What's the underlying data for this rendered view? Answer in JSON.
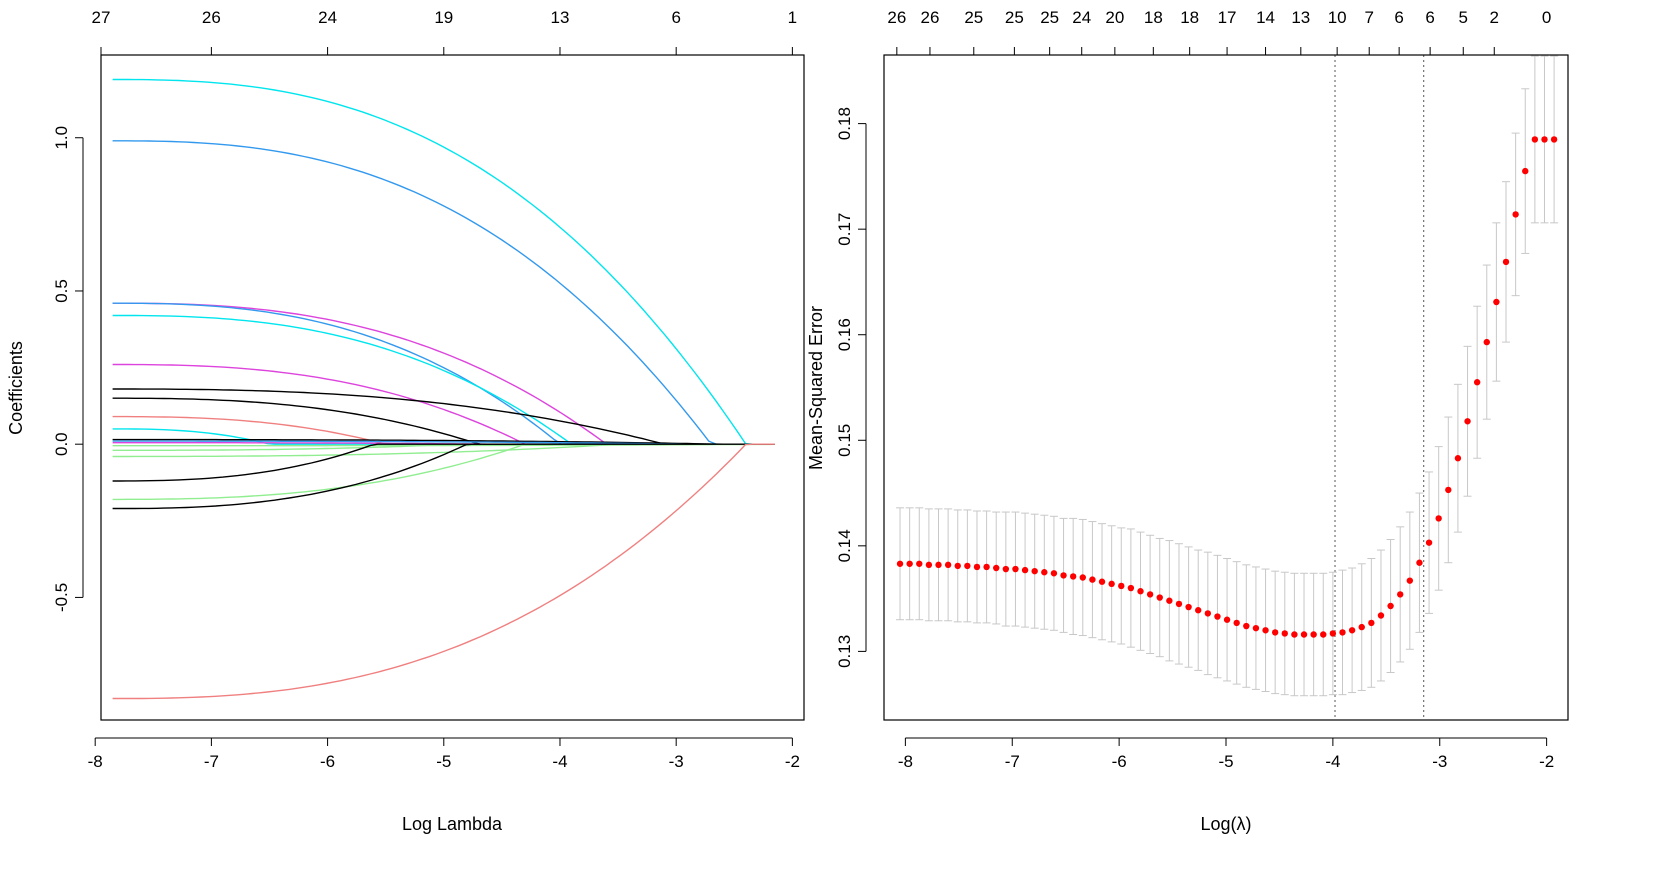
{
  "chart_data": [
    {
      "type": "line",
      "xlabel": "Log Lambda",
      "ylabel": "Coefficients",
      "xlim": [
        -7.95,
        -1.9
      ],
      "ylim": [
        -0.9,
        1.27
      ],
      "xticks": [
        -8,
        -7,
        -6,
        -5,
        -4,
        -3,
        -2
      ],
      "xtick_labels": [
        "-8",
        "-7",
        "-6",
        "-5",
        "-4",
        "-3",
        "-2"
      ],
      "yticks": [
        -0.5,
        0.0,
        0.5,
        1.0
      ],
      "ytick_labels": [
        "-0.5",
        "0.0",
        "0.5",
        "1.0"
      ],
      "top_ticks_x": [
        -7.95,
        -7,
        -6,
        -5,
        -4,
        -3,
        -2
      ],
      "top_ticks_labels": [
        "27",
        "26",
        "24",
        "19",
        "13",
        "6",
        "1"
      ],
      "x_start": -7.85,
      "x_end": -2.15,
      "series": [
        {
          "color": "#00E5EE",
          "start": 1.19,
          "zero_at": -2.4
        },
        {
          "color": "#3399EE",
          "start": 0.99,
          "zero_at": -2.7
        },
        {
          "color": "#DD44DD",
          "start": 0.46,
          "zero_at": -3.6
        },
        {
          "color": "#3399EE",
          "start": 0.46,
          "zero_at": -4.0
        },
        {
          "color": "#00E5EE",
          "start": 0.42,
          "zero_at": -3.9
        },
        {
          "color": "#DD44DD",
          "start": 0.26,
          "zero_at": -4.3
        },
        {
          "color": "#000000",
          "start": 0.18,
          "zero_at": -3.1
        },
        {
          "color": "#000000",
          "start": 0.15,
          "zero_at": -4.7
        },
        {
          "color": "#F08080",
          "start": 0.09,
          "zero_at": -5.5
        },
        {
          "color": "#00E5EE",
          "start": 0.05,
          "zero_at": -6.5
        },
        {
          "color": "#000000",
          "start": 0.015,
          "zero_at": -2.6
        },
        {
          "color": "#3399EE",
          "start": 0.01,
          "zero_at": -2.9
        },
        {
          "color": "#DD44DD",
          "start": 0.005,
          "zero_at": -4.6
        },
        {
          "color": "#90EE90",
          "start": -0.005,
          "zero_at": -1.95
        },
        {
          "color": "#90EE90",
          "start": -0.02,
          "zero_at": -4.9
        },
        {
          "color": "#90EE90",
          "start": -0.04,
          "zero_at": -3.5
        },
        {
          "color": "#000000",
          "start": -0.12,
          "zero_at": -5.6
        },
        {
          "color": "#90EE90",
          "start": -0.18,
          "zero_at": -4.3
        },
        {
          "color": "#000000",
          "start": -0.21,
          "zero_at": -4.8
        },
        {
          "color": "#F08080",
          "start": -0.83,
          "zero_at": -2.4
        }
      ]
    },
    {
      "type": "scatter",
      "xlabel": "Log(λ)",
      "ylabel": "Mean-Squared Error",
      "xlim": [
        -8.2,
        -1.8
      ],
      "ylim": [
        0.1235,
        0.1865
      ],
      "xticks": [
        -8,
        -7,
        -6,
        -5,
        -4,
        -3,
        -2
      ],
      "xtick_labels": [
        "-8",
        "-7",
        "-6",
        "-5",
        "-4",
        "-3",
        "-2"
      ],
      "yticks": [
        0.13,
        0.14,
        0.15,
        0.16,
        0.17,
        0.18
      ],
      "ytick_labels": [
        "0.13",
        "0.14",
        "0.15",
        "0.16",
        "0.17",
        "0.18"
      ],
      "top_ticks_x": [
        -8.08,
        -7.77,
        -7.36,
        -6.98,
        -6.65,
        -6.35,
        -6.04,
        -5.68,
        -5.34,
        -4.99,
        -4.63,
        -4.3,
        -3.96,
        -3.66,
        -3.38,
        -3.09,
        -2.78,
        -2.49
      ],
      "top_ticks_labels": [
        "26",
        "26",
        "25",
        "25",
        "25",
        "24",
        "20",
        "18",
        "18",
        "17",
        "14",
        "13",
        "10",
        "7",
        "6",
        "6",
        "5",
        "2"
      ],
      "top_tick_extra": {
        "x": -2.0,
        "label": "0"
      },
      "vlines": [
        -3.98,
        -3.15
      ],
      "x": [
        -8.05,
        -7.96,
        -7.87,
        -7.78,
        -7.69,
        -7.6,
        -7.51,
        -7.42,
        -7.33,
        -7.24,
        -7.15,
        -7.06,
        -6.97,
        -6.88,
        -6.79,
        -6.7,
        -6.61,
        -6.52,
        -6.43,
        -6.34,
        -6.25,
        -6.16,
        -6.07,
        -5.98,
        -5.89,
        -5.8,
        -5.71,
        -5.62,
        -5.53,
        -5.44,
        -5.35,
        -5.26,
        -5.17,
        -5.08,
        -4.99,
        -4.9,
        -4.81,
        -4.72,
        -4.63,
        -4.54,
        -4.45,
        -4.36,
        -4.27,
        -4.18,
        -4.09,
        -4.0,
        -3.91,
        -3.82,
        -3.73,
        -3.64,
        -3.55,
        -3.46,
        -3.37,
        -3.28,
        -3.19,
        -3.1,
        -3.01,
        -2.92,
        -2.83,
        -2.74,
        -2.65,
        -2.56,
        -2.47,
        -2.38,
        -2.29,
        -2.2,
        -2.11,
        -2.02,
        -1.93
      ],
      "mse": [
        0.1383,
        0.1383,
        0.1383,
        0.1382,
        0.1382,
        0.1382,
        0.1381,
        0.1381,
        0.138,
        0.138,
        0.1379,
        0.1378,
        0.1378,
        0.1377,
        0.1376,
        0.1375,
        0.1374,
        0.1372,
        0.1371,
        0.137,
        0.1368,
        0.1366,
        0.1364,
        0.1362,
        0.136,
        0.1357,
        0.1354,
        0.1351,
        0.1348,
        0.1345,
        0.1342,
        0.1339,
        0.1336,
        0.1333,
        0.133,
        0.1327,
        0.1324,
        0.1322,
        0.132,
        0.1318,
        0.1317,
        0.1316,
        0.1316,
        0.1316,
        0.1316,
        0.1317,
        0.1318,
        0.132,
        0.1323,
        0.1327,
        0.1334,
        0.1343,
        0.1354,
        0.1367,
        0.1384,
        0.1403,
        0.1426,
        0.1453,
        0.1483,
        0.1518,
        0.1555,
        0.1593,
        0.1631,
        0.1669,
        0.1714,
        0.1755,
        0.1785,
        0.1785,
        0.1785
      ],
      "se": [
        0.0053,
        0.0053,
        0.0053,
        0.0053,
        0.0053,
        0.0053,
        0.0053,
        0.0053,
        0.0053,
        0.0053,
        0.0053,
        0.0054,
        0.0054,
        0.0054,
        0.0054,
        0.0054,
        0.0054,
        0.0054,
        0.0055,
        0.0055,
        0.0055,
        0.0055,
        0.0055,
        0.0055,
        0.0056,
        0.0056,
        0.0056,
        0.0056,
        0.0057,
        0.0057,
        0.0057,
        0.0057,
        0.0058,
        0.0058,
        0.0058,
        0.0058,
        0.0058,
        0.0058,
        0.0058,
        0.0058,
        0.0058,
        0.0058,
        0.0058,
        0.0058,
        0.0058,
        0.0058,
        0.0059,
        0.0059,
        0.006,
        0.0061,
        0.0062,
        0.0063,
        0.0064,
        0.0065,
        0.0066,
        0.0067,
        0.0068,
        0.0069,
        0.007,
        0.0071,
        0.0072,
        0.0073,
        0.0075,
        0.0076,
        0.0077,
        0.0078,
        0.0079,
        0.0079,
        0.0079
      ],
      "point_color": "#FF0000",
      "errorbar_color": "#C8C8C8"
    }
  ]
}
